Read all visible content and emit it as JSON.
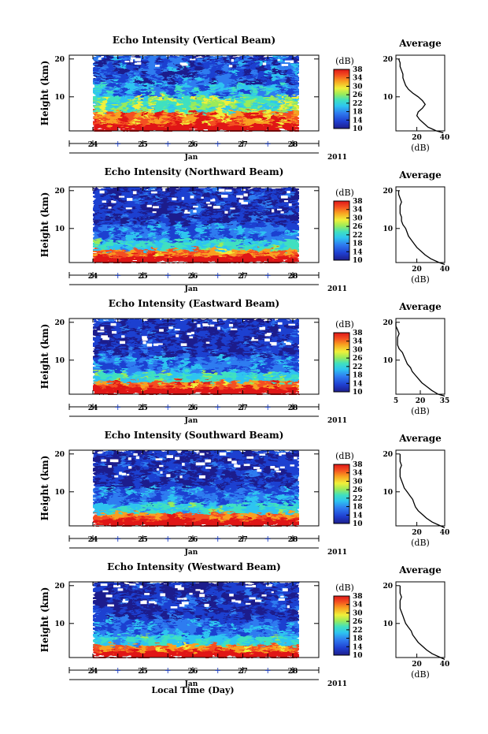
{
  "chart_data": {
    "type": "heatmap",
    "panels": [
      {
        "title": "Echo Intensity (Vertical Beam)",
        "profile_xticks": [
          "20",
          "40"
        ],
        "profile_xmin": 5,
        "profile_xmax": 40,
        "profile": [
          [
            0.5,
            39
          ],
          [
            1,
            34
          ],
          [
            1.5,
            31
          ],
          [
            2,
            28
          ],
          [
            3,
            25
          ],
          [
            4,
            22
          ],
          [
            5,
            20
          ],
          [
            6,
            21
          ],
          [
            7,
            24
          ],
          [
            8,
            26
          ],
          [
            9,
            24
          ],
          [
            10,
            21
          ],
          [
            11,
            17
          ],
          [
            12,
            14
          ],
          [
            13,
            12
          ],
          [
            14,
            11
          ],
          [
            15,
            10
          ],
          [
            16,
            10
          ],
          [
            17,
            9
          ],
          [
            18,
            8
          ],
          [
            19,
            8
          ],
          [
            20,
            7
          ]
        ]
      },
      {
        "title": "Echo Intensity (Northward Beam)",
        "profile_xticks": [
          "20",
          "40"
        ],
        "profile_xmin": 5,
        "profile_xmax": 40,
        "profile": [
          [
            0.5,
            40
          ],
          [
            1,
            36
          ],
          [
            2,
            30
          ],
          [
            3,
            26
          ],
          [
            4,
            23
          ],
          [
            5,
            20
          ],
          [
            6,
            18
          ],
          [
            7,
            16
          ],
          [
            8,
            14
          ],
          [
            9,
            13
          ],
          [
            10,
            12
          ],
          [
            11,
            10
          ],
          [
            12,
            9
          ],
          [
            13,
            9
          ],
          [
            14,
            8
          ],
          [
            15,
            8
          ],
          [
            16,
            8
          ],
          [
            17,
            9
          ],
          [
            18,
            8
          ],
          [
            19,
            7
          ],
          [
            20,
            7
          ]
        ]
      },
      {
        "title": "Echo Intensity (Eastward Beam)",
        "profile_xticks": [
          "5",
          "20",
          "35"
        ],
        "profile_xmin": 5,
        "profile_xmax": 35,
        "profile": [
          [
            0.5,
            35
          ],
          [
            1,
            31
          ],
          [
            2,
            27
          ],
          [
            3,
            24
          ],
          [
            4,
            21
          ],
          [
            5,
            19
          ],
          [
            6,
            17
          ],
          [
            7,
            15
          ],
          [
            8,
            14
          ],
          [
            9,
            12
          ],
          [
            10,
            11
          ],
          [
            11,
            10
          ],
          [
            12,
            9
          ],
          [
            13,
            7
          ],
          [
            14,
            6
          ],
          [
            15,
            6
          ],
          [
            16,
            6
          ],
          [
            17,
            7
          ],
          [
            18,
            6
          ],
          [
            19,
            5
          ],
          [
            20,
            5
          ]
        ]
      },
      {
        "title": "Echo Intensity (Southward Beam)",
        "profile_xticks": [
          "20",
          "40"
        ],
        "profile_xmin": 5,
        "profile_xmax": 40,
        "profile": [
          [
            0.5,
            40
          ],
          [
            1,
            37
          ],
          [
            2,
            31
          ],
          [
            3,
            27
          ],
          [
            4,
            24
          ],
          [
            5,
            21
          ],
          [
            6,
            19
          ],
          [
            7,
            18
          ],
          [
            8,
            17
          ],
          [
            9,
            15
          ],
          [
            10,
            13
          ],
          [
            11,
            11
          ],
          [
            12,
            10
          ],
          [
            13,
            9
          ],
          [
            14,
            8
          ],
          [
            15,
            8
          ],
          [
            16,
            8
          ],
          [
            17,
            9
          ],
          [
            18,
            8
          ],
          [
            19,
            8
          ],
          [
            20,
            8
          ]
        ]
      },
      {
        "title": "Echo Intensity (Westward Beam)",
        "profile_xticks": [
          "20",
          "40"
        ],
        "profile_xmin": 5,
        "profile_xmax": 40,
        "profile": [
          [
            0.5,
            40
          ],
          [
            1,
            37
          ],
          [
            2,
            31
          ],
          [
            3,
            27
          ],
          [
            4,
            24
          ],
          [
            5,
            21
          ],
          [
            6,
            19
          ],
          [
            7,
            17
          ],
          [
            8,
            16
          ],
          [
            9,
            14
          ],
          [
            10,
            12
          ],
          [
            11,
            11
          ],
          [
            12,
            10
          ],
          [
            13,
            9
          ],
          [
            14,
            8
          ],
          [
            15,
            8
          ],
          [
            16,
            8
          ],
          [
            17,
            9
          ],
          [
            18,
            8
          ],
          [
            19,
            8
          ],
          [
            20,
            8
          ]
        ]
      }
    ],
    "ylabel": "Height (km)",
    "yticks": [
      "10",
      "20"
    ],
    "ylim": [
      1,
      21
    ],
    "xticks": [
      "24",
      "25",
      "26",
      "27",
      "28"
    ],
    "month_label": "Jan",
    "year_label": "2011",
    "xlabel": "Local Time (Day)",
    "colorbar_unit": "(dB)",
    "colorbar_ticks": [
      "10",
      "14",
      "18",
      "22",
      "26",
      "30",
      "34",
      "38"
    ],
    "colorbar_range": [
      10,
      38
    ],
    "colormap": [
      "#1e1e8c",
      "#1f3fd0",
      "#2f7cf0",
      "#2ec4f0",
      "#3fe0c0",
      "#9aeb5a",
      "#f0f03a",
      "#f8a020",
      "#f45020",
      "#e01818"
    ],
    "profile_title": "Average",
    "profile_xlabel": "(dB)",
    "profile_yticks": [
      "10",
      "20"
    ]
  }
}
